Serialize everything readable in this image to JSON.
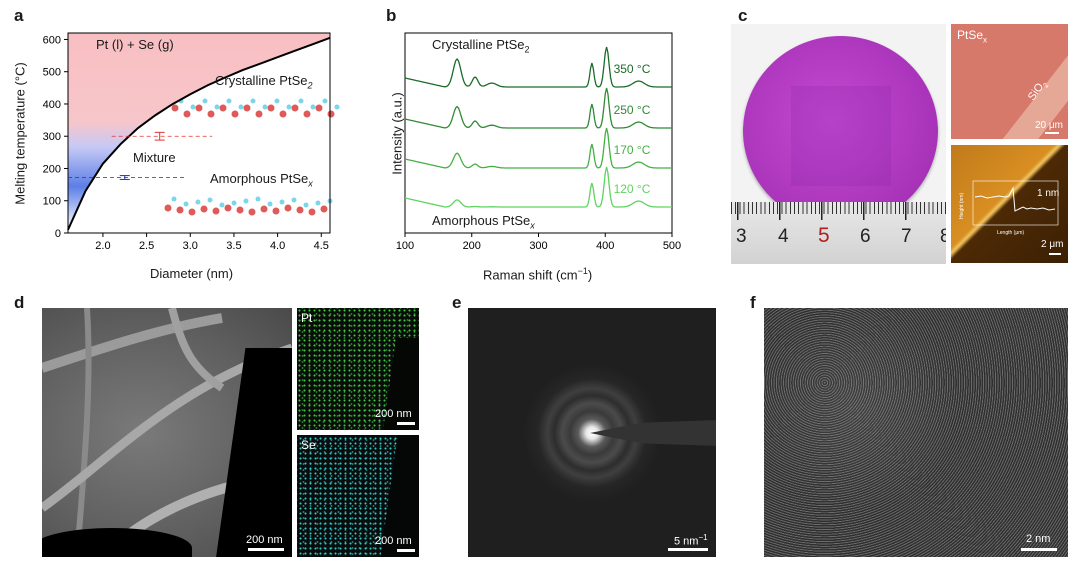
{
  "panel_labels": {
    "a": "a",
    "b": "b",
    "c": "c",
    "d": "d",
    "e": "e",
    "f": "f"
  },
  "panel_a": {
    "region_top": "Pt (l) + Se (g)",
    "crystalline_label": "Crystalline PtSe",
    "crystalline_sub": "2",
    "mixture_label": "Mixture",
    "amorphous_label": "Amorphous PtSe",
    "amorphous_sub": "x",
    "xlabel": "Diameter (nm)",
    "ylabel": "Melting temperature (°C)"
  },
  "panel_b": {
    "crystalline_label": "Crystalline PtSe",
    "crystalline_sub": "2",
    "amorphous_label": "Amorphous PtSe",
    "amorphous_sub": "x",
    "xlabel": "Raman shift (cm",
    "xlabel_sup": "−1",
    "xlabel_end": ")",
    "ylabel": "Intensity (a.u.)"
  },
  "panel_c": {
    "ptsex_label": "PtSe",
    "ptsex_sub": "x",
    "sio2_label": "SiO",
    "sio2_sub": "2",
    "scale_top": "20 μm",
    "scale_bottom": "2 μm",
    "afm_step": "1 nm",
    "afm_ylabel": "Height (nm)",
    "afm_xlabel": "Length (μm)",
    "ruler_numbers": [
      "3",
      "4",
      "5",
      "6",
      "7",
      "8"
    ]
  },
  "panel_d": {
    "scale_main": "200 nm",
    "pt_label": "Pt",
    "pt_scale": "200 nm",
    "se_label": "Se",
    "se_scale": "200 nm"
  },
  "panel_e": {
    "scale": "5 nm",
    "scale_sup": "−1"
  },
  "panel_f": {
    "scale": "2 nm"
  },
  "colors": {
    "melt_curve": "#000000",
    "liquid_region": "#f6b8bc",
    "amorph_region": "#6f8ff0",
    "raman_dark": "#1c6b2a",
    "raman_light": "#5fd35f",
    "wafer": "#b23cc2"
  },
  "chart_data": [
    {
      "type": "line",
      "title": "",
      "xlabel": "Diameter (nm)",
      "ylabel": "Melting temperature (°C)",
      "xlim": [
        1.6,
        4.6
      ],
      "ylim": [
        0,
        620
      ],
      "xticks": [
        2.0,
        2.5,
        3.0,
        3.5,
        4.0,
        4.5
      ],
      "yticks": [
        0,
        100,
        200,
        300,
        400,
        500,
        600
      ],
      "series": [
        {
          "x": [
            1.6,
            1.8,
            2.0,
            2.2,
            2.4,
            2.6,
            2.8,
            3.0,
            3.2,
            3.4,
            3.6,
            3.8,
            4.0,
            4.2,
            4.4,
            4.6
          ],
          "values": [
            10,
            130,
            215,
            275,
            325,
            365,
            400,
            430,
            458,
            482,
            505,
            525,
            545,
            565,
            585,
            605
          ]
        }
      ],
      "markers": [
        {
          "x": 2.65,
          "y": 300,
          "err": 12,
          "color": "#e03030"
        },
        {
          "x": 2.25,
          "y": 172,
          "err": 6,
          "color": "#2030c0"
        }
      ],
      "hlines": [
        {
          "y": 300,
          "x0": 2.1,
          "x1": 3.25,
          "color": "#e03030"
        },
        {
          "y": 172,
          "x0": 1.6,
          "x1": 2.95,
          "color": "#2030c0"
        }
      ]
    },
    {
      "type": "line",
      "title": "",
      "xlabel": "Raman shift (cm−1)",
      "ylabel": "Intensity (a.u.)",
      "xlim": [
        100,
        500
      ],
      "xticks": [
        100,
        200,
        300,
        400,
        500
      ],
      "series": [
        {
          "name": "350 °C",
          "color": "#1c6b2a"
        },
        {
          "name": "250 °C",
          "color": "#2f8a35"
        },
        {
          "name": "170 °C",
          "color": "#44b044"
        },
        {
          "name": "120 °C",
          "color": "#5fd35f"
        }
      ]
    }
  ]
}
